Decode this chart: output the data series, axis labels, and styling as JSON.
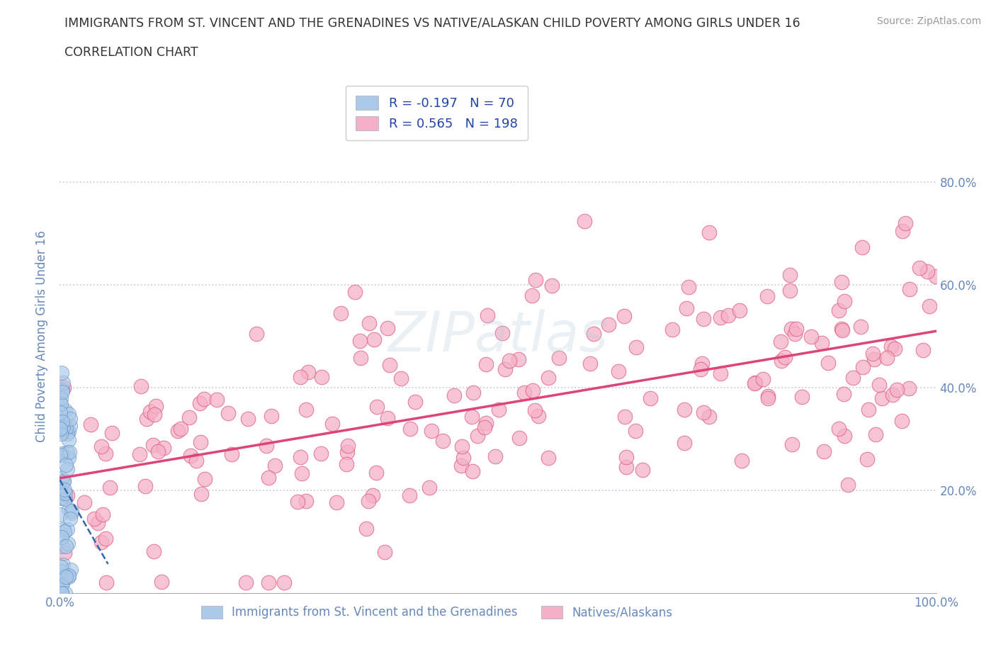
{
  "title": "IMMIGRANTS FROM ST. VINCENT AND THE GRENADINES VS NATIVE/ALASKAN CHILD POVERTY AMONG GIRLS UNDER 16",
  "subtitle": "CORRELATION CHART",
  "source": "Source: ZipAtlas.com",
  "ylabel": "Child Poverty Among Girls Under 16",
  "xlabel_blue": "Immigrants from St. Vincent and the Grenadines",
  "xlabel_pink": "Natives/Alaskans",
  "blue_R": -0.197,
  "blue_N": 70,
  "pink_R": 0.565,
  "pink_N": 198,
  "blue_fill_color": "#aac8e8",
  "pink_fill_color": "#f5b0c8",
  "blue_edge_color": "#5588bb",
  "pink_edge_color": "#e06080",
  "blue_line_color": "#3366aa",
  "pink_line_color": "#dd4477",
  "watermark": "ZIPatlas",
  "background_color": "#ffffff",
  "xlim": [
    0,
    1.0
  ],
  "ylim": [
    0,
    1.0
  ],
  "grid_color": "#ccccdd",
  "title_color": "#333333",
  "tick_label_color": "#6688bb",
  "legend_label_color": "#2244aa"
}
